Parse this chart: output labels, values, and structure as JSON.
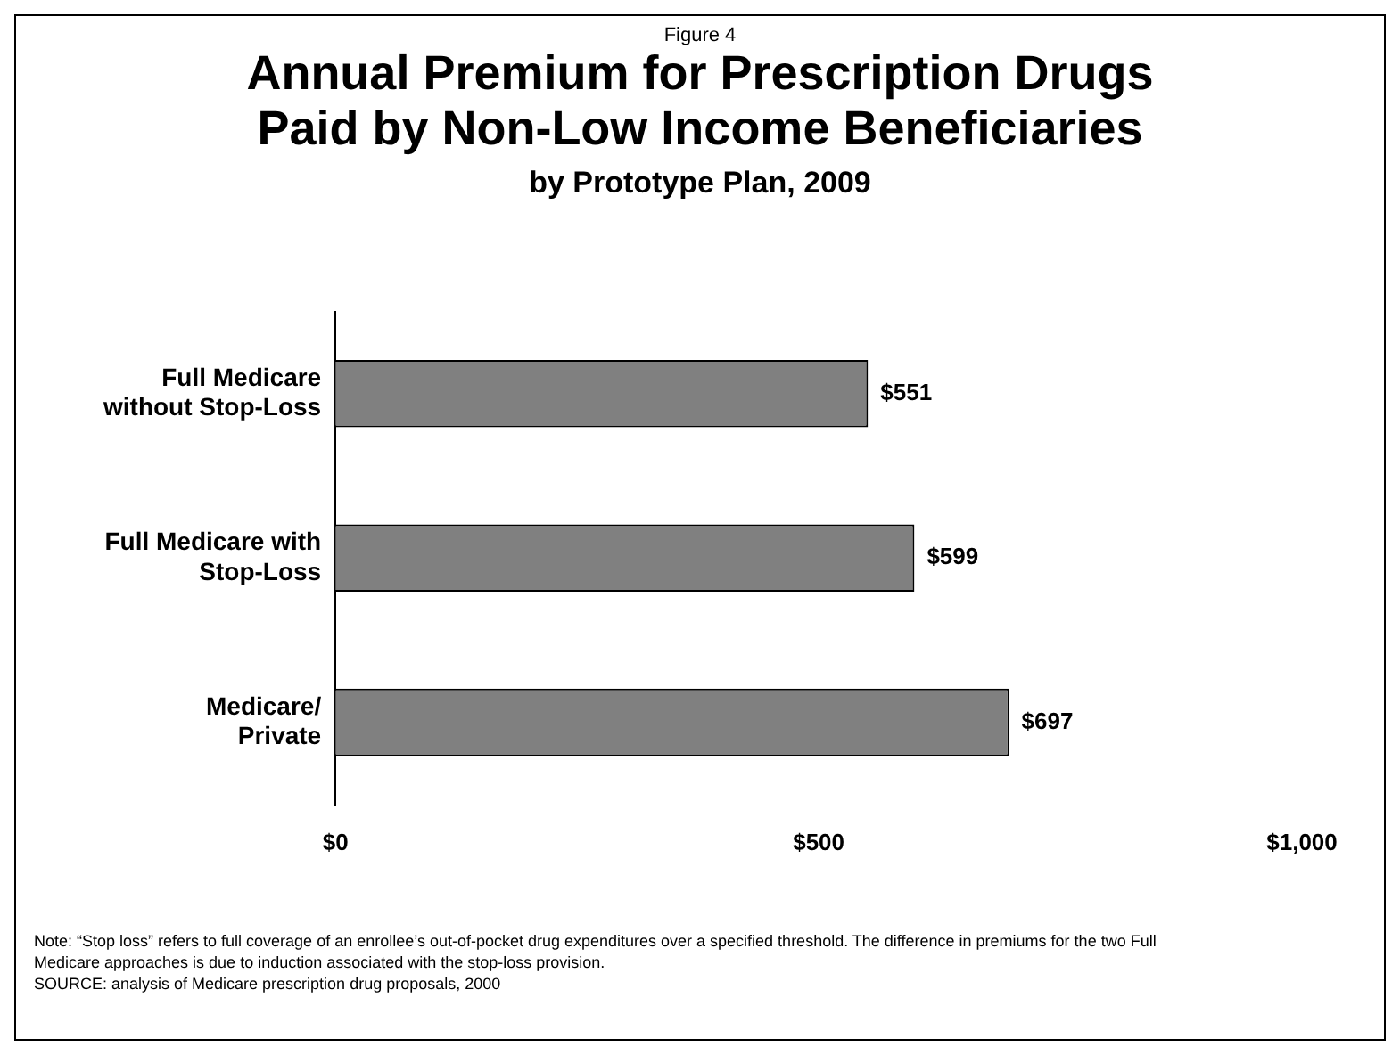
{
  "chart_data": {
    "type": "bar",
    "orientation": "horizontal",
    "subtitle": "Figure 4",
    "title": "Annual Premium for Prescription Drugs Paid by Non-Low Income Beneficiaries",
    "xlabel": "by Prototype Plan, 2009",
    "categories": [
      "Full Medicare without Stop-Loss",
      "Full Medicare with Stop-Loss",
      "Medicare/Private"
    ],
    "values": [
      551,
      599,
      697
    ],
    "color": "#808080",
    "value_labels": [
      "$551",
      "$599",
      "$697"
    ],
    "xlim": [
      0,
      1000
    ],
    "xticks": [
      {
        "value": 0,
        "label": "$0"
      },
      {
        "value": 500,
        "label": "$500"
      },
      {
        "value": 1000,
        "label": "$1,000"
      }
    ],
    "grid": false,
    "legend": false,
    "annotations": [
      "Note: “Stop loss” refers to full coverage of an enrollee’s out-of-pocket drug expenditures over a specified threshold. The difference in premiums for the two Full Medicare approaches is due to induction associated with the stop-loss provision.",
      "SOURCE: analysis of Medicare prescription drug proposals, 2000"
    ]
  }
}
